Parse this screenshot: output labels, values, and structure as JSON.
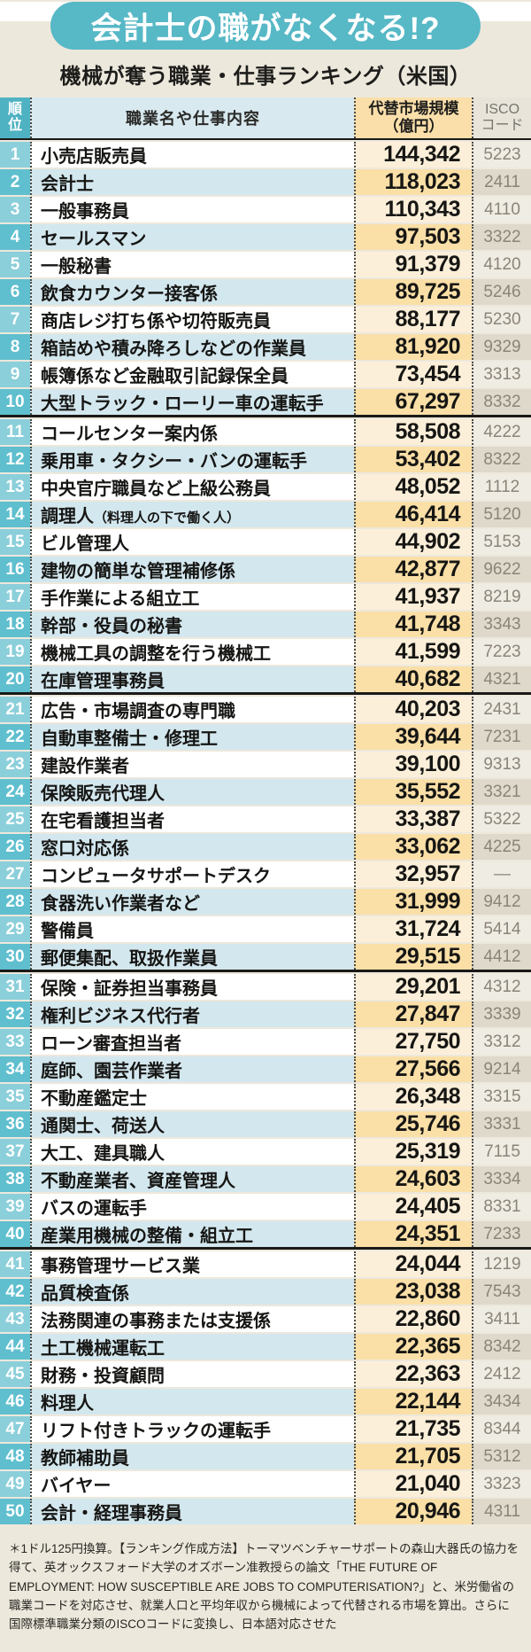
{
  "page": {
    "footnote": "＊1ドル125円換算。【ランキング作成方法】トーマツベンチャーサポートの森山大器氏の協力を得て、英オックスフォード大学のオズボーン准教授らの論文「THE FUTURE OF EMPLOYMENT: HOW SUSCEPTIBLE ARE JOBS TO COMPUTERISATION?」と、米労働省の職業コードを対応させ、就業人口と平均年収から機械によって代替される市場を算出。さらに国際標準職業分類のISCOコードに変換し、日本語対応させた"
  },
  "colors": {
    "banner_teal": "#57B8C6",
    "rank_header_teal": "#4FB2C2",
    "rank_odd": "#8BCFDA",
    "rank_even": "#5FBFCE",
    "job_even_blue": "#D3E7EE",
    "job_header_blue": "#D8E9EF",
    "value_odd_cream": "#FCEFD9",
    "value_even_orange": "#FADFA7",
    "value_header_orange": "#FBDFAA",
    "isco_odd": "#EFECE3",
    "isco_even": "#DFD9CB",
    "isco_text_gray": "#8B8478",
    "page_beige": "#EDE8DC",
    "separator_black": "#1A1A18"
  },
  "chart_data": {
    "type": "table",
    "title": "会計士の職がなくなる!?",
    "subtitle": "機械が奪う職業・仕事ランキング（米国）",
    "columns": {
      "rank": "順位",
      "job": "職業名や仕事内容",
      "market_line1": "代替市場規模",
      "market_line2": "（億円）",
      "isco_line1": "ISCO",
      "isco_line2": "コード"
    },
    "rows": [
      {
        "rank": 1,
        "name": "小売店販売員",
        "value": "144,342",
        "isco": "5223"
      },
      {
        "rank": 2,
        "name": "会計士",
        "value": "118,023",
        "isco": "2411"
      },
      {
        "rank": 3,
        "name": "一般事務員",
        "value": "110,343",
        "isco": "4110"
      },
      {
        "rank": 4,
        "name": "セールスマン",
        "value": "97,503",
        "isco": "3322"
      },
      {
        "rank": 5,
        "name": "一般秘書",
        "value": "91,379",
        "isco": "4120"
      },
      {
        "rank": 6,
        "name": "飲食カウンター接客係",
        "value": "89,725",
        "isco": "5246"
      },
      {
        "rank": 7,
        "name": "商店レジ打ち係や切符販売員",
        "value": "88,177",
        "isco": "5230"
      },
      {
        "rank": 8,
        "name": "箱詰めや積み降ろしなどの作業員",
        "value": "81,920",
        "isco": "9329"
      },
      {
        "rank": 9,
        "name": "帳簿係など金融取引記録保全員",
        "value": "73,454",
        "isco": "3313"
      },
      {
        "rank": 10,
        "name": "大型トラック・ローリー車の運転手",
        "value": "67,297",
        "isco": "8332"
      },
      {
        "rank": 11,
        "name": "コールセンター案内係",
        "value": "58,508",
        "isco": "4222"
      },
      {
        "rank": 12,
        "name": "乗用車・タクシー・バンの運転手",
        "value": "53,402",
        "isco": "8322"
      },
      {
        "rank": 13,
        "name": "中央官庁職員など上級公務員",
        "value": "48,052",
        "isco": "1112"
      },
      {
        "rank": 14,
        "name": "調理人",
        "note": "（料理人の下で働く人）",
        "value": "46,414",
        "isco": "5120"
      },
      {
        "rank": 15,
        "name": "ビル管理人",
        "value": "44,902",
        "isco": "5153"
      },
      {
        "rank": 16,
        "name": "建物の簡単な管理補修係",
        "value": "42,877",
        "isco": "9622"
      },
      {
        "rank": 17,
        "name": "手作業による組立工",
        "value": "41,937",
        "isco": "8219"
      },
      {
        "rank": 18,
        "name": "幹部・役員の秘書",
        "value": "41,748",
        "isco": "3343"
      },
      {
        "rank": 19,
        "name": "機械工具の調整を行う機械工",
        "value": "41,599",
        "isco": "7223"
      },
      {
        "rank": 20,
        "name": "在庫管理事務員",
        "value": "40,682",
        "isco": "4321"
      },
      {
        "rank": 21,
        "name": "広告・市場調査の専門職",
        "value": "40,203",
        "isco": "2431"
      },
      {
        "rank": 22,
        "name": "自動車整備士・修理工",
        "value": "39,644",
        "isco": "7231"
      },
      {
        "rank": 23,
        "name": "建設作業者",
        "value": "39,100",
        "isco": "9313"
      },
      {
        "rank": 24,
        "name": "保険販売代理人",
        "value": "35,552",
        "isco": "3321"
      },
      {
        "rank": 25,
        "name": "在宅看護担当者",
        "value": "33,387",
        "isco": "5322"
      },
      {
        "rank": 26,
        "name": "窓口対応係",
        "value": "33,062",
        "isco": "4225"
      },
      {
        "rank": 27,
        "name": "コンピュータサポートデスク",
        "value": "32,957",
        "isco": "—"
      },
      {
        "rank": 28,
        "name": "食器洗い作業者など",
        "value": "31,999",
        "isco": "9412"
      },
      {
        "rank": 29,
        "name": "警備員",
        "value": "31,724",
        "isco": "5414"
      },
      {
        "rank": 30,
        "name": "郵便集配、取扱作業員",
        "value": "29,515",
        "isco": "4412"
      },
      {
        "rank": 31,
        "name": "保険・証券担当事務員",
        "value": "29,201",
        "isco": "4312"
      },
      {
        "rank": 32,
        "name": "権利ビジネス代行者",
        "value": "27,847",
        "isco": "3339"
      },
      {
        "rank": 33,
        "name": "ローン審査担当者",
        "value": "27,750",
        "isco": "3312"
      },
      {
        "rank": 34,
        "name": "庭師、園芸作業者",
        "value": "27,566",
        "isco": "9214"
      },
      {
        "rank": 35,
        "name": "不動産鑑定士",
        "value": "26,348",
        "isco": "3315"
      },
      {
        "rank": 36,
        "name": "通関士、荷送人",
        "value": "25,746",
        "isco": "3331"
      },
      {
        "rank": 37,
        "name": "大工、建具職人",
        "value": "25,319",
        "isco": "7115"
      },
      {
        "rank": 38,
        "name": "不動産業者、資産管理人",
        "value": "24,603",
        "isco": "3334"
      },
      {
        "rank": 39,
        "name": "バスの運転手",
        "value": "24,405",
        "isco": "8331"
      },
      {
        "rank": 40,
        "name": "産業用機械の整備・組立工",
        "value": "24,351",
        "isco": "7233"
      },
      {
        "rank": 41,
        "name": "事務管理サービス業",
        "value": "24,044",
        "isco": "1219"
      },
      {
        "rank": 42,
        "name": "品質検査係",
        "value": "23,038",
        "isco": "7543"
      },
      {
        "rank": 43,
        "name": "法務関連の事務または支援係",
        "value": "22,860",
        "isco": "3411"
      },
      {
        "rank": 44,
        "name": "土工機械運転工",
        "value": "22,365",
        "isco": "8342"
      },
      {
        "rank": 45,
        "name": "財務・投資顧問",
        "value": "22,363",
        "isco": "2412"
      },
      {
        "rank": 46,
        "name": "料理人",
        "value": "22,144",
        "isco": "3434"
      },
      {
        "rank": 47,
        "name": "リフト付きトラックの運転手",
        "value": "21,735",
        "isco": "8344"
      },
      {
        "rank": 48,
        "name": "教師補助員",
        "value": "21,705",
        "isco": "5312"
      },
      {
        "rank": 49,
        "name": "バイヤー",
        "value": "21,040",
        "isco": "3323"
      },
      {
        "rank": 50,
        "name": "会計・経理事務員",
        "value": "20,946",
        "isco": "4311"
      }
    ]
  }
}
